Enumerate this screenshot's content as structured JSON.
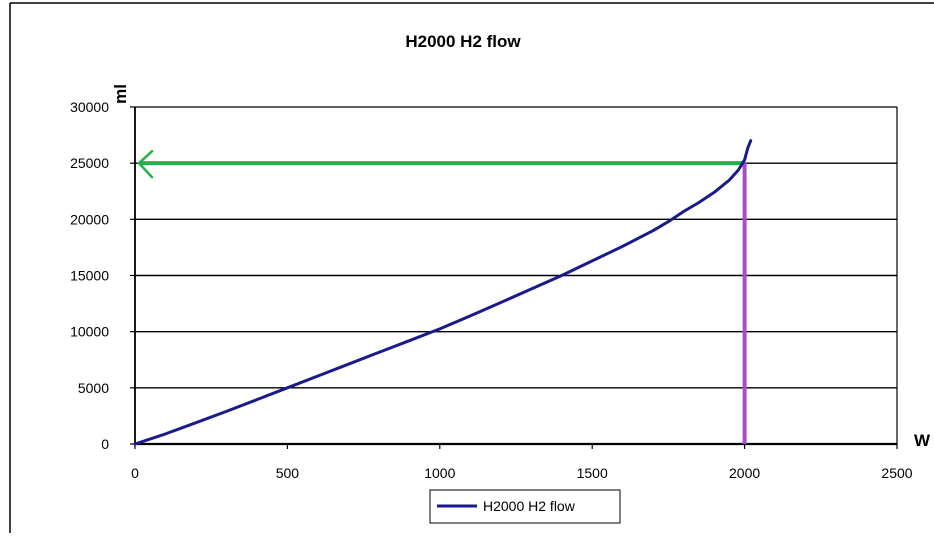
{
  "chart_data": {
    "type": "line",
    "title": "H2000 H2 flow",
    "xlabel": "W",
    "ylabel": "ml",
    "xlim": [
      0,
      2500
    ],
    "ylim": [
      0,
      30000
    ],
    "x_ticks": [
      "0",
      "500",
      "1000",
      "1500",
      "2000",
      "2500"
    ],
    "y_ticks": [
      "0",
      "5000",
      "10000",
      "15000",
      "20000",
      "25000",
      "30000"
    ],
    "grid": "horizontal",
    "legend_position": "bottom",
    "series": [
      {
        "name": "H2000 H2 flow",
        "color": "#1a1a8c",
        "x": [
          0,
          100,
          200,
          300,
          400,
          500,
          600,
          700,
          800,
          900,
          1000,
          1100,
          1200,
          1300,
          1400,
          1500,
          1600,
          1700,
          1750,
          1800,
          1850,
          1900,
          1950,
          1980,
          2000,
          2010,
          2020
        ],
        "y": [
          0,
          900,
          1900,
          2900,
          3950,
          5000,
          6050,
          7100,
          8150,
          9200,
          10250,
          11400,
          12600,
          13800,
          15000,
          16300,
          17600,
          19000,
          19800,
          20700,
          21500,
          22400,
          23500,
          24400,
          25300,
          26300,
          27000
        ]
      }
    ],
    "annotations": [
      {
        "kind": "horizontal-arrow",
        "color": "#22b04a",
        "y": 25000,
        "from_x": 2000,
        "to_x": 0
      },
      {
        "kind": "vertical-line",
        "color": "#a64dc8",
        "x": 2000,
        "from_y": 0,
        "to_y": 25000
      }
    ]
  }
}
